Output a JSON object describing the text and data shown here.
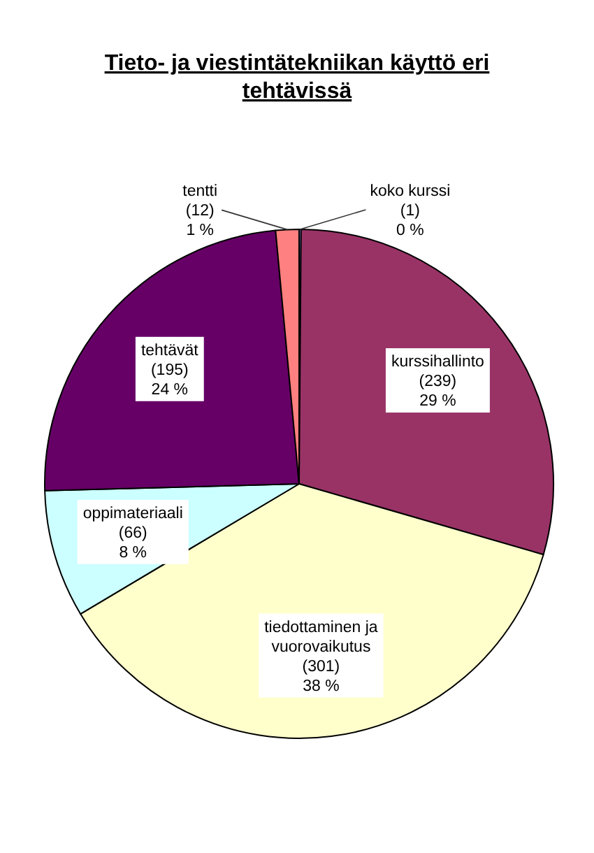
{
  "chart_data": {
    "type": "pie",
    "title": "Tieto- ja viestintätekniikan käyttö eri tehtävissä",
    "categories": [
      "koko kurssi",
      "kurssihallinto",
      "tiedottaminen ja vuorovaikutus",
      "oppimateriaali",
      "tehtävät",
      "tentti"
    ],
    "values": [
      1,
      239,
      301,
      66,
      195,
      12
    ],
    "colors": [
      "#9999ff",
      "#993366",
      "#ffffcc",
      "#ccffff",
      "#660066",
      "#ff8080"
    ],
    "value_labels": [
      "(1)\n0 %",
      "(239)\n29 %",
      "(301)\n38 %",
      "(66)\n8 %",
      "(195)\n24 %",
      "(12)\n1 %"
    ]
  }
}
